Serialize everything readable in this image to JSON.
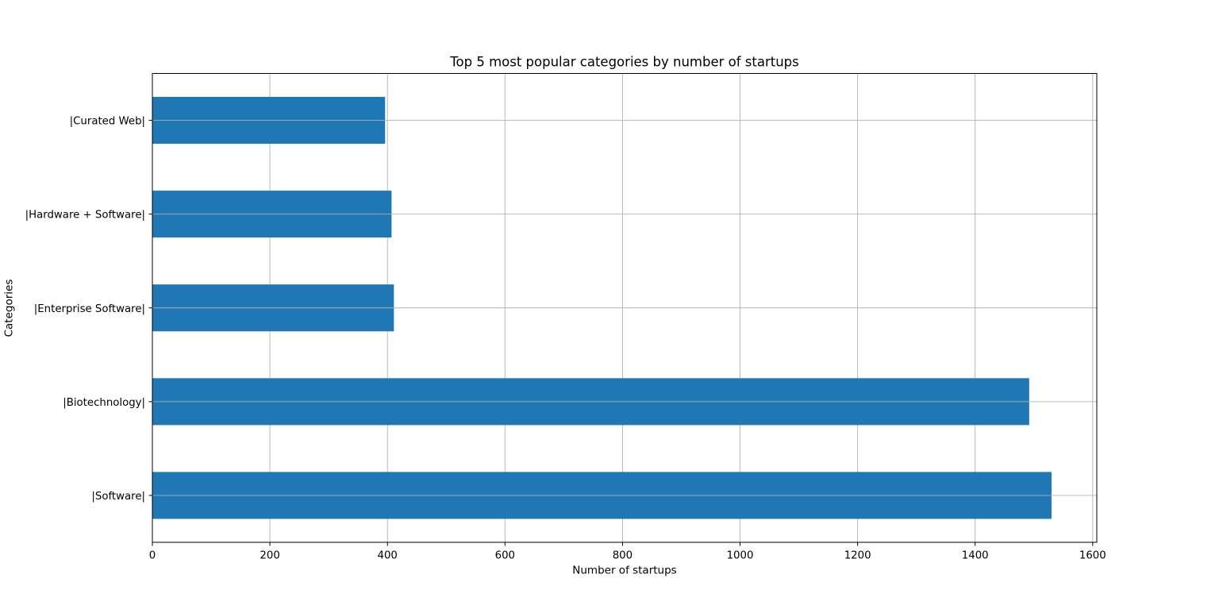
{
  "chart_data": {
    "type": "bar",
    "orientation": "horizontal",
    "title": "Top 5 most popular categories by number of startups",
    "xlabel": "Number of startups",
    "ylabel": "Categories",
    "categories": [
      "|Software|",
      "|Biotechnology|",
      "|Enterprise Software|",
      "|Hardware + Software|",
      "|Curated Web|"
    ],
    "values": [
      1530,
      1492,
      411,
      407,
      396
    ],
    "xlim": [
      0,
      1607
    ],
    "xticks": [
      0,
      200,
      400,
      600,
      800,
      1000,
      1200,
      1400,
      1600
    ],
    "grid": true,
    "bar_color": "#1f77b4",
    "grid_color": "#b0b0b0"
  }
}
